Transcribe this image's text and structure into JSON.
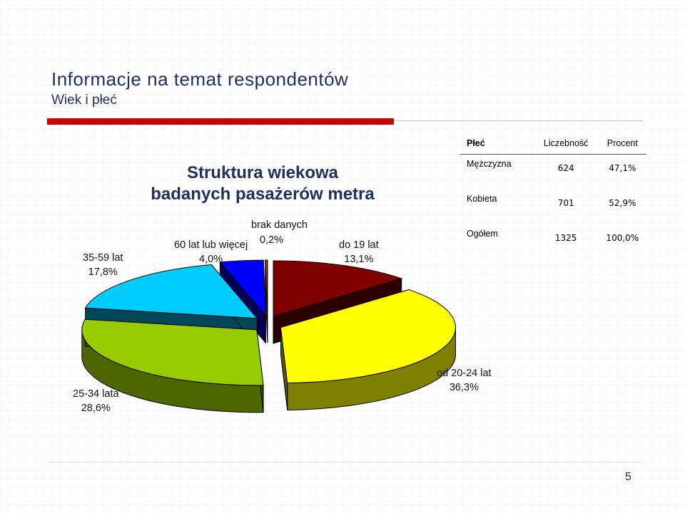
{
  "slide": {
    "title": "Informacje na temat respondentów",
    "subtitle": "Wiek i płeć",
    "page_number": "5"
  },
  "chart_data": {
    "type": "pie",
    "title": "Struktura wiekowa\nbadanych pasażerów metra",
    "slices": [
      {
        "name": "do 19 lat",
        "label": "13,1%",
        "value": 13.1,
        "color": "#800000"
      },
      {
        "name": "od 20-24 lat",
        "label": "36,3%",
        "value": 36.3,
        "color": "#ffff00"
      },
      {
        "name": "25-34 lata",
        "label": "28,6%",
        "value": 28.6,
        "color": "#99cc00"
      },
      {
        "name": "35-59 lat",
        "label": "17,8%",
        "value": 17.8,
        "color": "#00ccff"
      },
      {
        "name": "60 lat lub więcej",
        "label": "4,0%",
        "value": 4.0,
        "color": "#0000ff"
      },
      {
        "name": "brak danych",
        "label": "0,2%",
        "value": 0.2,
        "color": "#cc3300"
      }
    ]
  },
  "gender_table": {
    "headers": [
      "Płeć",
      "Liczebność",
      "Procent"
    ],
    "rows": [
      {
        "category": "Mężczyzna",
        "count": "624",
        "percent": "47,1%"
      },
      {
        "category": "Kobieta",
        "count": "701",
        "percent": "52,9%"
      },
      {
        "category": "Ogółem",
        "count": "1325",
        "percent": "100,0%"
      }
    ]
  }
}
